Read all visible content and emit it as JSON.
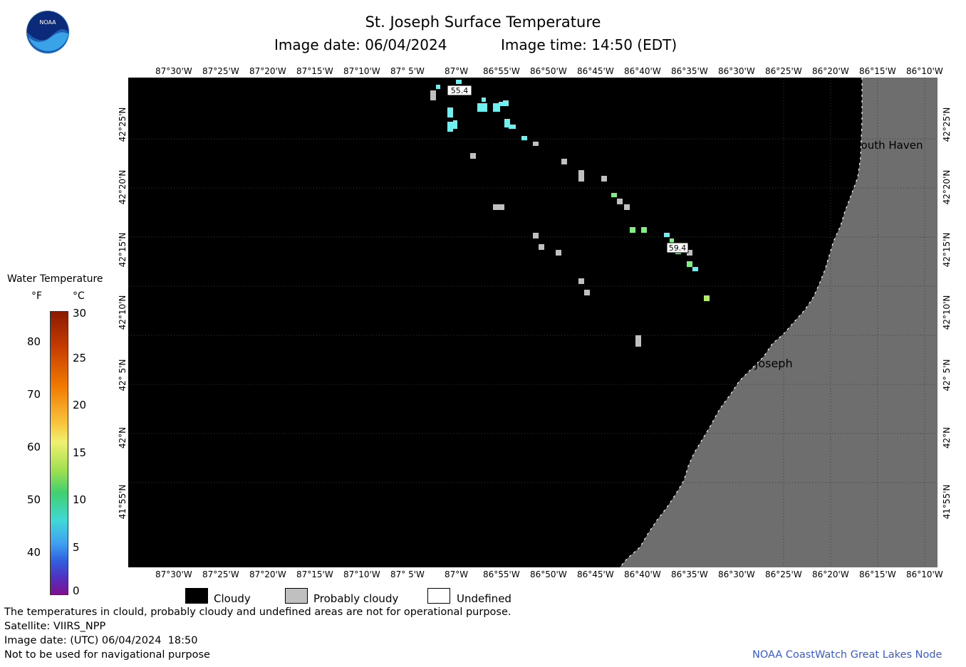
{
  "header": {
    "title": "St. Joseph Surface Temperature",
    "date_label": "Image date: 06/04/2024",
    "time_label": "Image time: 14:50 (EDT)",
    "logo_text": "NOAA"
  },
  "map": {
    "lon_labels": [
      "87°30'W",
      "87°25'W",
      "87°20'W",
      "87°15'W",
      "87°10'W",
      "87° 5'W",
      "87°W",
      "86°55'W",
      "86°50'W",
      "86°45'W",
      "86°40'W",
      "86°35'W",
      "86°30'W",
      "86°25'W",
      "86°20'W",
      "86°15'W",
      "86°10'W"
    ],
    "lat_labels": [
      "42°25'N",
      "42°20'N",
      "42°15'N",
      "42°10'N",
      "42° 5'N",
      "42°N",
      "41°55'N"
    ],
    "places": [
      {
        "name": "South Haven"
      },
      {
        "name": "St. Joseph"
      }
    ],
    "temperature_labels": [
      "55.4",
      "59.4"
    ],
    "colors": {
      "cloudy": "#000000",
      "probably_cloudy": "#c0c0c0",
      "land": "#6e6e6e",
      "cyan": "#6ff0f0",
      "green": "#80f080"
    }
  },
  "legend": {
    "title": "Water Temperature",
    "unit_f": "°F",
    "unit_c": "°C",
    "f_ticks": [
      "80",
      "70",
      "60",
      "50",
      "40"
    ],
    "c_ticks": [
      "30",
      "25",
      "20",
      "15",
      "10",
      "5",
      "0"
    ],
    "keys": [
      {
        "label": "Cloudy",
        "color": "#000000"
      },
      {
        "label": "Probably cloudy",
        "color": "#c0c0c0"
      },
      {
        "label": "Undefined",
        "color": "#ffffff"
      }
    ]
  },
  "footer": {
    "note": "The temperatures in clould, probably cloudy and undefined areas are not for operational purpose.",
    "satellite": "Satellite: VIIRS_NPP",
    "utc": "Image date: (UTC) 06/04/2024  18:50",
    "nav": "Not to be used for navigational purpose",
    "credit": "NOAA CoastWatch Great Lakes Node"
  }
}
